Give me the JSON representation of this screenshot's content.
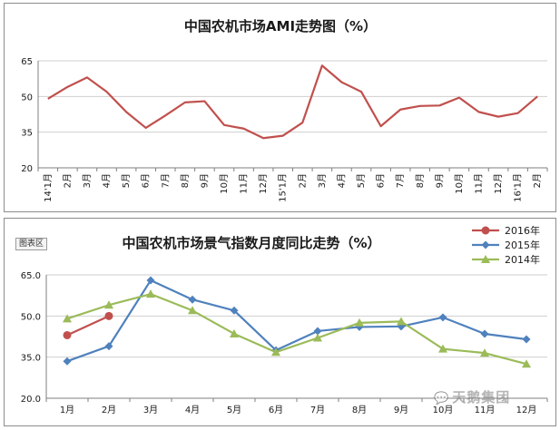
{
  "chart_data": [
    {
      "type": "line",
      "title": "中国农机市场AMI走势图（%）",
      "ylim": [
        20,
        65
      ],
      "yticks": [
        "20",
        "35",
        "50",
        "65"
      ],
      "categories": [
        "14'1月",
        "2月",
        "3月",
        "4月",
        "5月",
        "6月",
        "7月",
        "8月",
        "9月",
        "10月",
        "11月",
        "12月",
        "15'1月",
        "2月",
        "3月",
        "4月",
        "5月",
        "6月",
        "7月",
        "8月",
        "9月",
        "10月",
        "11月",
        "12月",
        "16'1月",
        "2月"
      ],
      "series": [
        {
          "color": "#c0504d",
          "values": [
            49,
            54,
            58,
            52,
            43.5,
            36.8,
            42,
            47.5,
            48,
            38,
            36.5,
            32.5,
            33.5,
            39,
            63,
            56,
            52,
            37.5,
            44.5,
            46,
            46.2,
            49.5,
            43.5,
            41.5,
            43,
            50
          ]
        }
      ],
      "legend": "none",
      "grid": true
    },
    {
      "type": "line",
      "title": "中国农机市场景气指数月度同比走势（%）",
      "ylim": [
        20,
        65
      ],
      "yticks": [
        "20.0",
        "35.0",
        "50.0",
        "65.0"
      ],
      "categories": [
        "1月",
        "2月",
        "3月",
        "4月",
        "5月",
        "6月",
        "7月",
        "8月",
        "9月",
        "10月",
        "11月",
        "12月"
      ],
      "series": [
        {
          "name": "2016年",
          "color": "#c0504d",
          "marker": "circle",
          "values": [
            43,
            50,
            null,
            null,
            null,
            null,
            null,
            null,
            null,
            null,
            null,
            null
          ]
        },
        {
          "name": "2015年",
          "color": "#4f81bd",
          "marker": "diamond",
          "values": [
            33.5,
            39,
            63,
            56,
            52,
            37.5,
            44.5,
            46,
            46.2,
            49.5,
            43.5,
            41.5
          ]
        },
        {
          "name": "2014年",
          "color": "#9bbb59",
          "marker": "triangle",
          "values": [
            49,
            54,
            58,
            52,
            43.5,
            36.8,
            42,
            47.5,
            48,
            38,
            36.5,
            32.5
          ]
        }
      ],
      "legend": "top-right",
      "grid": true
    }
  ],
  "ui": {
    "plot_area_label": "图表区",
    "watermark": "天鹅集团"
  }
}
